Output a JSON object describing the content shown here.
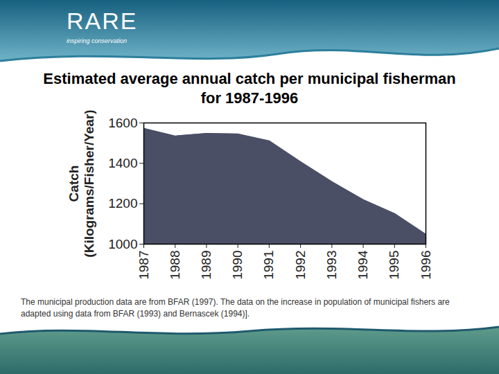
{
  "chart_data": {
    "type": "area",
    "title": "Estimated average annual catch per municipal fisherman for 1987-1996",
    "y_label": "Catch (Kilograms/Fisher/Year)",
    "logo": "RARE",
    "tagline": "inspiring conservation",
    "caption": "The municipal production data are from BFAR (1997). The data on the increase in population of municipal fishers are adapted using data from BFAR (1993) and Bernascek (1994)].",
    "x": [
      1987,
      1988,
      1989,
      1990,
      1991,
      1992,
      1993,
      1994,
      1995,
      1996
    ],
    "values": [
      1573,
      1535,
      1548,
      1545,
      1511,
      1408,
      1309,
      1220,
      1151,
      1048
    ],
    "color": "#4b4f66",
    "xlim": [
      1987,
      1996
    ],
    "xticks": [
      1987,
      1988,
      1989,
      1990,
      1991,
      1992,
      1993,
      1994,
      1995,
      1996
    ],
    "ylim": [
      1000,
      1600
    ],
    "yticks": [
      1000,
      1200,
      1400,
      1600
    ],
    "grid": false
  }
}
